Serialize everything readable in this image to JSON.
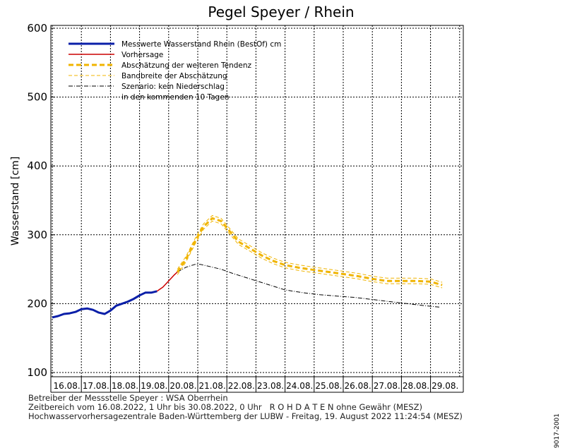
{
  "chart_data": {
    "type": "line",
    "title": "Pegel Speyer / Rhein",
    "ylabel": "Wasserstand [cm]",
    "ylim": [
      100,
      600
    ],
    "yticks": [
      100,
      200,
      300,
      400,
      500,
      600
    ],
    "xlim": [
      0,
      14
    ],
    "x_tick_labels": [
      "16.08.",
      "17.08.",
      "18.08.",
      "19.08.",
      "20.08.",
      "21.08.",
      "22.08.",
      "23.08.",
      "24.08.",
      "25.08.",
      "26.08.",
      "27.08.",
      "28.08.",
      "29.08."
    ],
    "grid": true,
    "legend_placement": "top-left",
    "series": [
      {
        "name": "Messwerte Wasserstand Rhein (BestOf)   cm",
        "color": "#0a1fa8",
        "style": "solid-thick",
        "x": [
          0,
          0.2,
          0.4,
          0.6,
          0.8,
          1.0,
          1.2,
          1.4,
          1.6,
          1.8,
          2.0,
          2.2,
          2.4,
          2.6,
          2.8,
          3.0,
          3.2,
          3.4,
          3.6
        ],
        "y": [
          180,
          182,
          185,
          186,
          188,
          192,
          193,
          191,
          187,
          185,
          190,
          197,
          200,
          203,
          207,
          212,
          216,
          216,
          218
        ]
      },
      {
        "name": "Vorhersage",
        "color": "#cc0000",
        "style": "solid",
        "x": [
          3.6,
          3.8,
          4.0,
          4.2,
          4.3
        ],
        "y": [
          218,
          224,
          233,
          242,
          246
        ]
      },
      {
        "name": "Abschätzung der weiteren Tendenz",
        "color": "#f0b400",
        "style": "dashed-thick",
        "x": [
          4.3,
          4.6,
          4.9,
          5.2,
          5.5,
          5.8,
          6.1,
          6.4,
          6.8,
          7.2,
          7.6,
          8.0,
          8.5,
          9.0,
          9.5,
          10.0,
          10.5,
          11.0,
          11.5,
          12.0,
          12.5,
          13.0,
          13.4
        ],
        "y": [
          246,
          265,
          290,
          312,
          324,
          320,
          305,
          290,
          280,
          270,
          262,
          256,
          252,
          249,
          246,
          243,
          240,
          236,
          233,
          233,
          233,
          232,
          227
        ]
      },
      {
        "name": "Bandbreite der Abschätzung",
        "color": "#f0b400",
        "style": "dashed-thin",
        "offset": 4
      },
      {
        "name": "Szenario: kein Niederschlag",
        "name2": "in den kommenden 10 Tagen",
        "color": "#000000",
        "style": "dashdot",
        "x": [
          4.3,
          4.6,
          4.9,
          5.1,
          5.4,
          5.8,
          6.2,
          6.8,
          7.4,
          8.0,
          8.6,
          9.2,
          9.8,
          10.4,
          11.0,
          11.6,
          12.2,
          12.8,
          13.3
        ],
        "y": [
          246,
          253,
          257,
          257,
          254,
          250,
          244,
          236,
          228,
          220,
          216,
          213,
          211,
          209,
          206,
          203,
          200,
          197,
          195
        ]
      }
    ]
  },
  "footer": {
    "line1": "Betreiber der Messstelle Speyer : WSA Oberrhein",
    "line2": "Zeitbereich vom 16.08.2022, 1 Uhr bis 30.08.2022, 0 Uhr   R O H D A T E N ohne Gewähr (MESZ)",
    "line3": "Hochwasservorhersagezentrale Baden-Württemberg der LUBW - Freitag, 19. August 2022 11:24:54 (MESZ)"
  },
  "side_code": "9017-2001"
}
